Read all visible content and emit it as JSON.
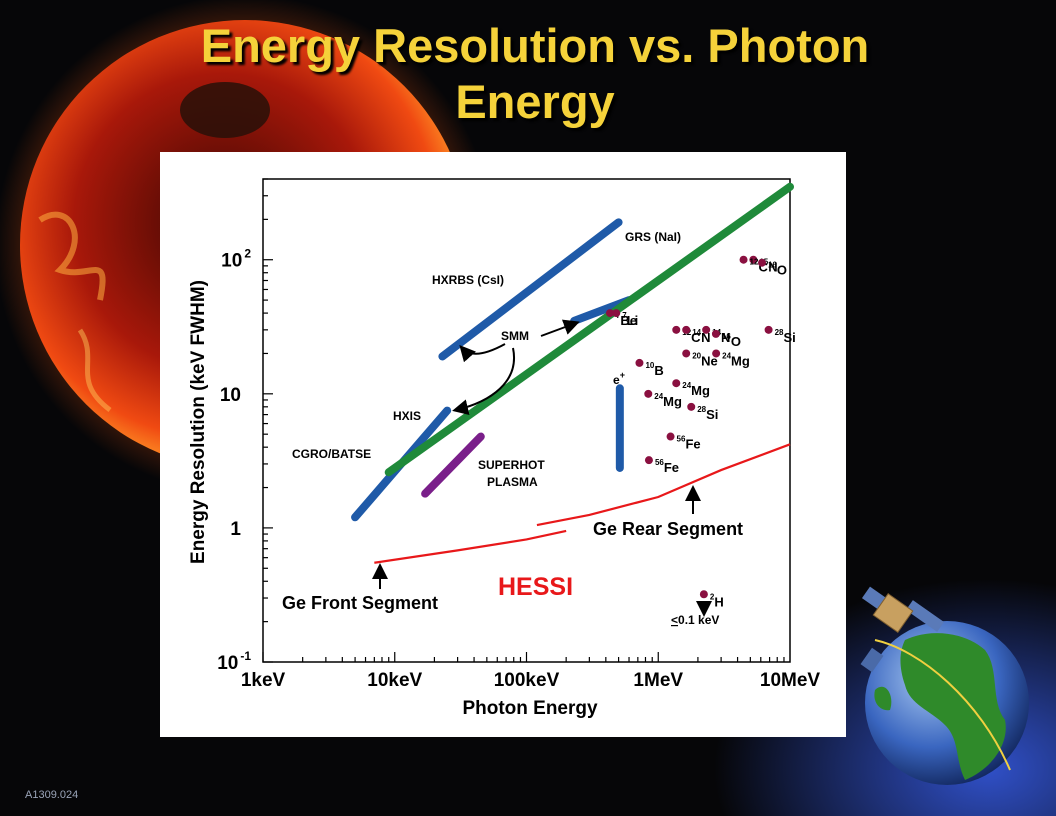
{
  "slide": {
    "title_line1": "Energy Resolution vs. Photon",
    "title_line2": "Energy",
    "code": "A1309.024"
  },
  "colors": {
    "title": "#f5d23a",
    "instrument_blue": "#1f5aa8",
    "green": "#1f8a3a",
    "purple": "#7a1f8a",
    "hessi_red": "#e8181a",
    "nuclear_line": "#8a1040"
  },
  "chart_data": {
    "type": "line",
    "title": "",
    "xlabel": "Photon Energy",
    "ylabel": "Energy Resolution (keV FWHM)",
    "xscale": "log",
    "yscale": "log",
    "xlim": [
      1,
      10000
    ],
    "ylim": [
      0.1,
      400
    ],
    "x_ticks": [
      {
        "v": 1,
        "label": "1keV"
      },
      {
        "v": 10,
        "label": "10keV"
      },
      {
        "v": 100,
        "label": "100keV"
      },
      {
        "v": 1000,
        "label": "1MeV"
      },
      {
        "v": 10000,
        "label": "10MeV"
      }
    ],
    "y_ticks": [
      {
        "v": 0.1,
        "base": "10",
        "exp": "-1"
      },
      {
        "v": 1,
        "base": "1",
        "exp": ""
      },
      {
        "v": 10,
        "base": "10",
        "exp": ""
      },
      {
        "v": 100,
        "base": "10",
        "exp": "2"
      }
    ],
    "instruments": [
      {
        "name": "HXRBS (CsI)",
        "color": "#1f5aa8",
        "points": [
          [
            23,
            19
          ],
          [
            500,
            190
          ]
        ]
      },
      {
        "name": "CGRO/BATSE",
        "color": "#1f5aa8",
        "points": [
          [
            5,
            1.2
          ],
          [
            25,
            7.5
          ]
        ]
      },
      {
        "name": "GRS (NaI)",
        "color": "#1f5aa8",
        "points": [
          [
            230,
            35
          ],
          [
            600,
            50
          ]
        ]
      },
      {
        "name": "SMM",
        "color": "#1f8a3a",
        "points": [
          [
            9,
            2.6
          ],
          [
            10000,
            350
          ]
        ]
      },
      {
        "name": "SUPERHOT PLASMA",
        "color": "#7a1f8a",
        "points": [
          [
            17,
            1.8
          ],
          [
            45,
            4.8
          ]
        ]
      },
      {
        "name": "",
        "color": "#1f5aa8",
        "points": [
          [
            511,
            2.8
          ],
          [
            511,
            11
          ]
        ]
      }
    ],
    "hessi_segments": [
      {
        "name": "Ge Front Segment",
        "points": [
          [
            7,
            0.55
          ],
          [
            30,
            0.68
          ],
          [
            100,
            0.82
          ],
          [
            200,
            0.95
          ]
        ]
      },
      {
        "name": "Ge Rear Segment",
        "points": [
          [
            120,
            1.05
          ],
          [
            300,
            1.25
          ],
          [
            1000,
            1.7
          ],
          [
            3000,
            2.7
          ],
          [
            10000,
            4.2
          ]
        ]
      }
    ],
    "nuclear_lines": [
      {
        "label": "N",
        "mass": "15",
        "x": 5270,
        "y": 100
      },
      {
        "label": "C",
        "mass": "12",
        "x": 4440,
        "y": 100
      },
      {
        "label": "O",
        "mass": "16",
        "x": 6130,
        "y": 95
      },
      {
        "label": "Si",
        "mass": "28",
        "x": 6880,
        "y": 30
      },
      {
        "label": "C",
        "mass": "12",
        "x": 1370,
        "y": 30
      },
      {
        "label": "N",
        "mass": "14",
        "x": 1630,
        "y": 30
      },
      {
        "label": "N",
        "mass": "14",
        "x": 2310,
        "y": 30
      },
      {
        "label": "O",
        "mass": "16",
        "x": 2740,
        "y": 28
      },
      {
        "label": "Ne",
        "mass": "20",
        "x": 1630,
        "y": 20
      },
      {
        "label": "Mg",
        "mass": "24",
        "x": 2750,
        "y": 20
      },
      {
        "label": "Be",
        "mass": "7",
        "x": 430,
        "y": 40
      },
      {
        "label": "Li",
        "mass": "7",
        "x": 480,
        "y": 40
      },
      {
        "label": "B",
        "mass": "10",
        "x": 720,
        "y": 17
      },
      {
        "label": "Mg",
        "mass": "24",
        "x": 1370,
        "y": 12
      },
      {
        "label": "Mg",
        "mass": "24",
        "x": 840,
        "y": 10
      },
      {
        "label": "Si",
        "mass": "28",
        "x": 1780,
        "y": 8
      },
      {
        "label": "Fe",
        "mass": "56",
        "x": 1240,
        "y": 4.8
      },
      {
        "label": "Fe",
        "mass": "56",
        "x": 850,
        "y": 3.2
      },
      {
        "label": "H",
        "mass": "2",
        "x": 2220,
        "y": 0.32
      }
    ],
    "annotations": {
      "grs": "GRS (NaI)",
      "hxrbs": "HXRBS (CsI)",
      "smm": "SMM",
      "hxis": "HXIS",
      "batse": "CGRO/BATSE",
      "superhot_1": "SUPERHOT",
      "superhot_2": "PLASMA",
      "positron": "e",
      "positron_sup": "+",
      "hessi": "HESSI",
      "front": "Ge Front Segment",
      "rear": "Ge Rear Segment",
      "le_sym": "<",
      "limit": "0.1 keV"
    }
  }
}
